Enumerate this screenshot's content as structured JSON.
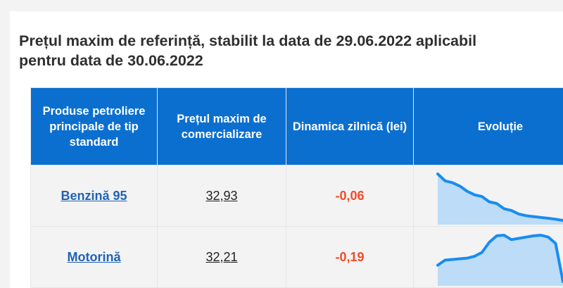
{
  "title": "Prețul maxim de referință, stabilit la data de 29.06.2022 aplicabil pentru data de 30.06.2022",
  "headers": {
    "product": "Produse petroliere principale de tip standard",
    "price": "Prețul maxim de comercializare",
    "delta": "Dinamica zilnică (lei)",
    "evolution": "Evoluție"
  },
  "rows": [
    {
      "product": "Benzină 95",
      "price": "32,93",
      "delta": "-0,06",
      "trend": [
        35.6,
        35.2,
        35.1,
        34.9,
        34.6,
        34.4,
        34.3,
        34.0,
        33.9,
        33.6,
        33.5,
        33.3,
        33.2,
        33.15,
        33.1,
        33.05,
        33.0,
        32.93
      ]
    },
    {
      "product": "Motorină",
      "price": "32,21",
      "delta": "-0,19",
      "trend": [
        33.5,
        33.9,
        33.95,
        34.0,
        34.05,
        34.2,
        34.5,
        35.3,
        35.8,
        35.85,
        35.5,
        35.6,
        35.7,
        35.8,
        35.85,
        35.7,
        35.2,
        32.21
      ]
    }
  ],
  "colors": {
    "header_bg": "#0b6fd0",
    "link": "#1f63b6",
    "delta": "#f04b2a",
    "spark_line": "#1a8cf0",
    "spark_fill": "#bcdcf7"
  }
}
